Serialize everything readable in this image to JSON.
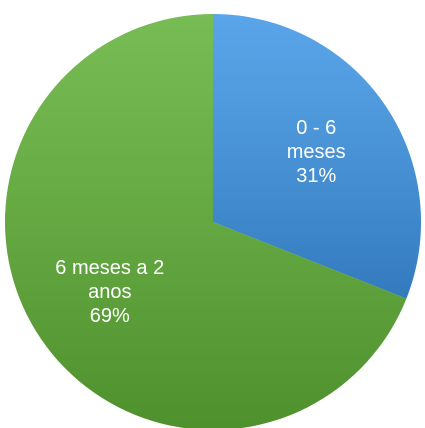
{
  "chart_data": {
    "type": "pie",
    "categories": [
      "0 - 6 meses",
      "6 meses a 2 anos"
    ],
    "values": [
      31,
      69
    ],
    "value_labels": [
      "31%",
      "69%"
    ],
    "colors": [
      "#3d95e6",
      "#5fb036"
    ]
  }
}
